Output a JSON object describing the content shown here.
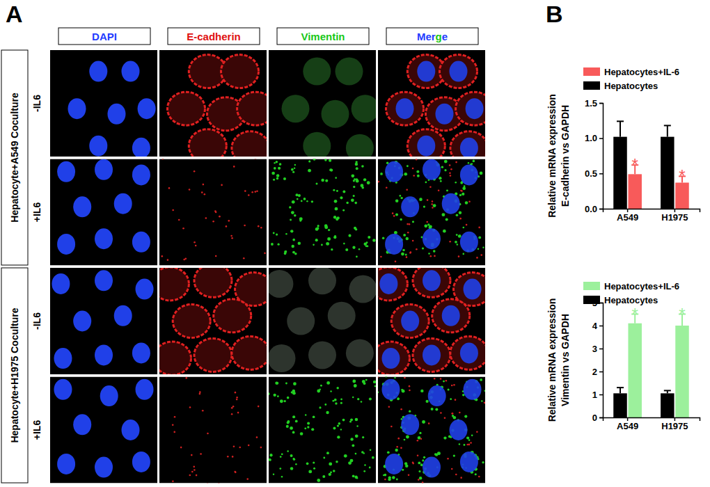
{
  "panel_a": {
    "label": "A",
    "columns": [
      "DAPI",
      "E-cadherin",
      "Vimentin",
      "Merge"
    ],
    "groups": [
      {
        "label": "Hepatocyte+A549 Coculture",
        "rows": [
          "-IL6",
          "+IL6"
        ]
      },
      {
        "label": "Hepatocyte+H1975 Coculture",
        "rows": [
          "-IL6",
          "+IL6"
        ]
      }
    ]
  },
  "panel_b": {
    "label": "B"
  },
  "chart_data": [
    {
      "type": "bar",
      "y_label": [
        "Relative mRNA expression",
        "E-cadherin vs GAPDH"
      ],
      "categories": [
        "A549",
        "H1975"
      ],
      "series": [
        {
          "name": "Hepatocytes",
          "color": "#000000",
          "values": [
            1.02,
            1.02
          ],
          "errors": [
            0.22,
            0.16
          ]
        },
        {
          "name": "Hepatocytes+IL-6",
          "color": "#f85a5a",
          "values": [
            0.49,
            0.37
          ],
          "errors": [
            0.13,
            0.09
          ],
          "significance": [
            "*",
            "*"
          ]
        }
      ],
      "ylim": [
        0,
        1.5
      ],
      "yticks": [
        {
          "value": 0,
          "label": "0.0"
        },
        {
          "value": 0.5,
          "label": "0.5"
        },
        {
          "value": 1,
          "label": "1.0"
        },
        {
          "value": 1.5,
          "label": "1.5"
        }
      ],
      "legend": "upper left"
    },
    {
      "type": "bar",
      "y_label": [
        "Relative mRNA expression",
        "Vimentin vs GAPDH"
      ],
      "categories": [
        "A549",
        "H1975"
      ],
      "series": [
        {
          "name": "Hepatocytes",
          "color": "#000000",
          "values": [
            1.05,
            1.05
          ],
          "errors": [
            0.25,
            0.12
          ]
        },
        {
          "name": "Hepatocytes+IL-6",
          "color": "#9cf09c",
          "values": [
            4.1,
            4.0
          ],
          "errors": [
            0.4,
            0.5
          ],
          "significance": [
            "*",
            "*"
          ]
        }
      ],
      "ylim": [
        0,
        5
      ],
      "yticks": [
        0,
        1,
        2,
        3,
        4,
        5
      ],
      "legend": "upper left"
    }
  ]
}
